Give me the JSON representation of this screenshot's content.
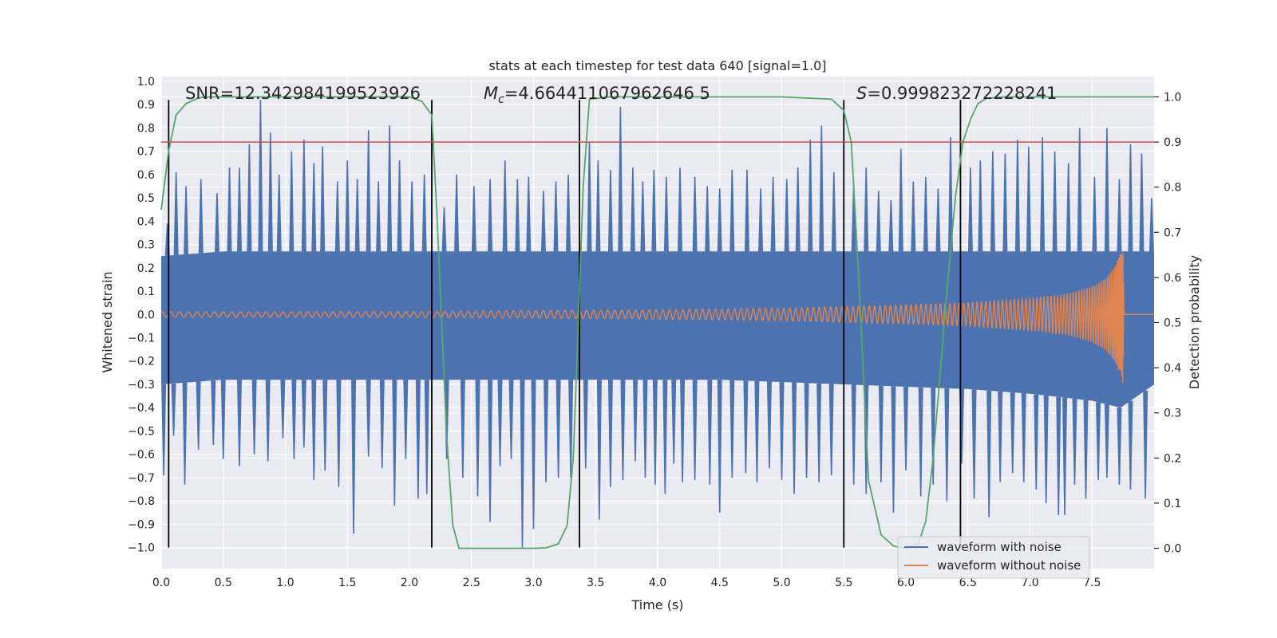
{
  "chart_data": {
    "type": "line",
    "title": "stats at each timestep for test data 640 [signal=1.0]",
    "xlabel": "Time (s)",
    "ylabel": "Whitened strain",
    "y2label": "Detection probability",
    "xlim": [
      0.0,
      8.0
    ],
    "ylim": [
      -1.09,
      1.02
    ],
    "y2lim": [
      -0.045,
      1.045
    ],
    "xticks": [
      "0.0",
      "0.5",
      "1.0",
      "1.5",
      "2.0",
      "2.5",
      "3.0",
      "3.5",
      "4.0",
      "4.5",
      "5.0",
      "5.5",
      "6.0",
      "6.5",
      "7.0",
      "7.5"
    ],
    "yticks": [
      "1.0",
      "0.9",
      "0.8",
      "0.7",
      "0.6",
      "0.5",
      "0.4",
      "0.3",
      "0.2",
      "0.1",
      "0.0",
      "−0.1",
      "−0.2",
      "−0.3",
      "−0.4",
      "−0.5",
      "−0.6",
      "−0.7",
      "−0.8",
      "−0.9",
      "−1.0"
    ],
    "y2ticks": [
      "1.0",
      "0.9",
      "0.8",
      "0.7",
      "0.6",
      "0.5",
      "0.4",
      "0.3",
      "0.2",
      "0.1",
      "0.0"
    ],
    "annotations": {
      "snr": "SNR=12.342984199523926",
      "mc_symbol": "M",
      "mc_sub": "c",
      "mc_value": "=4.664411067962646 5",
      "s_symbol": "S",
      "s_value": "=0.999823272228241"
    },
    "threshold": {
      "value": 0.9,
      "axis": "right",
      "color": "#c44e52"
    },
    "vlines": {
      "x": [
        0.06,
        2.18,
        3.37,
        5.5,
        6.44
      ],
      "y_range": [
        -1.0,
        0.92
      ],
      "color": "#000000"
    },
    "noise_envelope": {
      "name": "waveform with noise",
      "color": "#4c72b0",
      "t": [
        0.0,
        0.5,
        1.0,
        1.5,
        2.0,
        2.5,
        3.0,
        3.5,
        4.0,
        4.5,
        5.0,
        5.5,
        6.0,
        6.5,
        7.0,
        7.5,
        7.73,
        8.0
      ],
      "upper": [
        0.25,
        0.27,
        0.27,
        0.27,
        0.27,
        0.27,
        0.27,
        0.27,
        0.27,
        0.27,
        0.27,
        0.27,
        0.27,
        0.27,
        0.27,
        0.27,
        0.27,
        0.27
      ],
      "lower": [
        -0.3,
        -0.28,
        -0.28,
        -0.28,
        -0.28,
        -0.28,
        -0.28,
        -0.28,
        -0.28,
        -0.28,
        -0.29,
        -0.3,
        -0.31,
        -0.32,
        -0.34,
        -0.37,
        -0.4,
        -0.3
      ],
      "spikes": [
        [
          0.05,
          0.39
        ],
        [
          0.12,
          0.61
        ],
        [
          0.2,
          0.55
        ],
        [
          0.32,
          0.58
        ],
        [
          0.45,
          0.52
        ],
        [
          0.55,
          0.63
        ],
        [
          0.63,
          0.63
        ],
        [
          0.71,
          0.73
        ],
        [
          0.8,
          0.92
        ],
        [
          0.88,
          0.78
        ],
        [
          0.95,
          0.6
        ],
        [
          1.05,
          0.7
        ],
        [
          1.15,
          0.75
        ],
        [
          1.23,
          0.65
        ],
        [
          1.3,
          0.72
        ],
        [
          1.42,
          0.57
        ],
        [
          1.5,
          0.66
        ],
        [
          1.58,
          0.58
        ],
        [
          1.67,
          0.79
        ],
        [
          1.75,
          0.57
        ],
        [
          1.84,
          0.81
        ],
        [
          1.92,
          0.66
        ],
        [
          2.02,
          0.57
        ],
        [
          2.12,
          0.6
        ],
        [
          2.28,
          0.46
        ],
        [
          2.38,
          0.6
        ],
        [
          2.52,
          0.55
        ],
        [
          2.65,
          0.58
        ],
        [
          2.77,
          0.66
        ],
        [
          2.87,
          0.58
        ],
        [
          2.96,
          0.59
        ],
        [
          3.08,
          0.53
        ],
        [
          3.18,
          0.57
        ],
        [
          3.28,
          0.6
        ],
        [
          3.45,
          0.74
        ],
        [
          3.52,
          0.66
        ],
        [
          3.62,
          0.62
        ],
        [
          3.7,
          0.89
        ],
        [
          3.8,
          0.63
        ],
        [
          3.88,
          0.57
        ],
        [
          3.97,
          0.62
        ],
        [
          4.07,
          0.59
        ],
        [
          4.18,
          0.63
        ],
        [
          4.3,
          0.59
        ],
        [
          4.4,
          0.55
        ],
        [
          4.5,
          0.54
        ],
        [
          4.6,
          0.62
        ],
        [
          4.72,
          0.62
        ],
        [
          4.83,
          0.54
        ],
        [
          4.93,
          0.59
        ],
        [
          5.04,
          0.58
        ],
        [
          5.13,
          0.63
        ],
        [
          5.23,
          0.75
        ],
        [
          5.32,
          0.81
        ],
        [
          5.42,
          0.61
        ],
        [
          5.58,
          0.56
        ],
        [
          5.68,
          0.63
        ],
        [
          5.78,
          0.53
        ],
        [
          5.88,
          0.49
        ],
        [
          5.96,
          0.71
        ],
        [
          6.06,
          0.57
        ],
        [
          6.16,
          0.59
        ],
        [
          6.26,
          0.54
        ],
        [
          6.36,
          0.76
        ],
        [
          6.52,
          0.63
        ],
        [
          6.6,
          0.66
        ],
        [
          6.7,
          0.7
        ],
        [
          6.8,
          0.69
        ],
        [
          6.9,
          0.75
        ],
        [
          6.99,
          0.72
        ],
        [
          7.1,
          0.76
        ],
        [
          7.2,
          0.7
        ],
        [
          7.31,
          0.65
        ],
        [
          7.4,
          0.8
        ],
        [
          7.52,
          0.59
        ],
        [
          7.62,
          0.8
        ],
        [
          7.72,
          0.58
        ],
        [
          7.81,
          0.73
        ],
        [
          7.9,
          0.69
        ],
        [
          7.98,
          0.5
        ],
        [
          0.02,
          -0.69
        ],
        [
          0.1,
          -0.52
        ],
        [
          0.19,
          -0.73
        ],
        [
          0.3,
          -0.58
        ],
        [
          0.42,
          -0.56
        ],
        [
          0.5,
          -0.62
        ],
        [
          0.63,
          -0.65
        ],
        [
          0.75,
          -0.6
        ],
        [
          0.86,
          -0.63
        ],
        [
          0.98,
          -0.53
        ],
        [
          1.07,
          -0.62
        ],
        [
          1.15,
          -0.57
        ],
        [
          1.23,
          -0.71
        ],
        [
          1.32,
          -0.67
        ],
        [
          1.43,
          -0.74
        ],
        [
          1.55,
          -0.94
        ],
        [
          1.67,
          -0.61
        ],
        [
          1.78,
          -0.66
        ],
        [
          1.88,
          -0.82
        ],
        [
          1.97,
          -0.62
        ],
        [
          2.07,
          -0.79
        ],
        [
          2.14,
          -0.77
        ],
        [
          2.3,
          -0.62
        ],
        [
          2.43,
          -0.7
        ],
        [
          2.55,
          -0.78
        ],
        [
          2.65,
          -0.89
        ],
        [
          2.73,
          -0.65
        ],
        [
          2.82,
          -0.62
        ],
        [
          2.91,
          -1.0
        ],
        [
          3.0,
          -0.92
        ],
        [
          3.1,
          -0.72
        ],
        [
          3.2,
          -0.7
        ],
        [
          3.3,
          -0.7
        ],
        [
          3.42,
          -0.66
        ],
        [
          3.53,
          -0.88
        ],
        [
          3.62,
          -0.74
        ],
        [
          3.72,
          -0.71
        ],
        [
          3.82,
          -0.63
        ],
        [
          3.9,
          -0.7
        ],
        [
          3.98,
          -0.73
        ],
        [
          4.06,
          -0.77
        ],
        [
          4.13,
          -0.64
        ],
        [
          4.2,
          -0.72
        ],
        [
          4.3,
          -0.71
        ],
        [
          4.42,
          -0.73
        ],
        [
          4.5,
          -0.85
        ],
        [
          4.6,
          -0.7
        ],
        [
          4.71,
          -0.68
        ],
        [
          4.8,
          -0.72
        ],
        [
          4.9,
          -0.66
        ],
        [
          5.0,
          -0.71
        ],
        [
          5.1,
          -0.77
        ],
        [
          5.2,
          -0.7
        ],
        [
          5.3,
          -0.72
        ],
        [
          5.4,
          -0.69
        ],
        [
          5.58,
          -0.73
        ],
        [
          5.68,
          -0.77
        ],
        [
          5.8,
          -0.72
        ],
        [
          5.9,
          -0.85
        ],
        [
          6.0,
          -0.67
        ],
        [
          6.12,
          -0.78
        ],
        [
          6.22,
          -0.73
        ],
        [
          6.33,
          -0.8
        ],
        [
          6.45,
          -0.64
        ],
        [
          6.55,
          -0.79
        ],
        [
          6.67,
          -0.87
        ],
        [
          6.76,
          -0.72
        ],
        [
          6.86,
          -0.68
        ],
        [
          6.95,
          -0.72
        ],
        [
          7.05,
          -0.75
        ],
        [
          7.13,
          -0.81
        ],
        [
          7.23,
          -0.86
        ],
        [
          7.28,
          -0.86
        ],
        [
          7.36,
          -0.73
        ],
        [
          7.45,
          -0.79
        ],
        [
          7.55,
          -0.71
        ],
        [
          7.62,
          -0.7
        ],
        [
          7.72,
          -0.73
        ],
        [
          7.81,
          -0.75
        ],
        [
          7.93,
          -0.79
        ]
      ]
    },
    "clean_waveform": {
      "name": "waveform without noise",
      "color": "#dd8452",
      "t": [
        0.0,
        1.0,
        2.0,
        3.0,
        4.0,
        5.0,
        6.0,
        6.5,
        7.0,
        7.3,
        7.5,
        7.6,
        7.68,
        7.72,
        7.75,
        7.76,
        8.0
      ],
      "amplitude": [
        0.012,
        0.012,
        0.013,
        0.016,
        0.02,
        0.027,
        0.04,
        0.05,
        0.068,
        0.088,
        0.12,
        0.15,
        0.2,
        0.25,
        0.3,
        0.0,
        0.0
      ],
      "chirp_f0": 14.0,
      "chirp_tc": 7.76
    },
    "detection_probability": {
      "name": "detection probability",
      "color": "#55a868",
      "t": [
        0.0,
        0.06,
        0.12,
        0.2,
        0.3,
        0.4,
        0.6,
        1.0,
        1.5,
        2.0,
        2.1,
        2.18,
        2.22,
        2.26,
        2.3,
        2.35,
        2.4,
        2.6,
        2.9,
        3.0,
        3.1,
        3.2,
        3.27,
        3.32,
        3.36,
        3.4,
        3.45,
        3.6,
        4.0,
        5.0,
        5.4,
        5.5,
        5.56,
        5.62,
        5.7,
        5.8,
        5.9,
        6.0,
        6.1,
        6.16,
        6.22,
        6.28,
        6.34,
        6.4,
        6.46,
        6.52,
        6.58,
        6.65,
        6.8,
        7.0,
        7.5,
        8.0
      ],
      "p": [
        0.75,
        0.88,
        0.96,
        0.985,
        0.998,
        1.0,
        1.0,
        1.0,
        1.0,
        1.0,
        0.99,
        0.96,
        0.75,
        0.5,
        0.25,
        0.05,
        0.0,
        0.0,
        0.0,
        0.0,
        0.001,
        0.01,
        0.05,
        0.2,
        0.5,
        0.8,
        0.995,
        1.0,
        1.0,
        1.0,
        0.995,
        0.97,
        0.9,
        0.6,
        0.15,
        0.03,
        0.005,
        0.0,
        0.01,
        0.06,
        0.2,
        0.4,
        0.6,
        0.78,
        0.9,
        0.95,
        0.985,
        0.997,
        1.0,
        1.0,
        1.0,
        1.0
      ]
    },
    "legend": {
      "position": "lower-right",
      "entries": [
        {
          "label": "waveform with noise",
          "color": "#4c72b0"
        },
        {
          "label": "waveform without noise",
          "color": "#dd8452"
        }
      ]
    }
  }
}
